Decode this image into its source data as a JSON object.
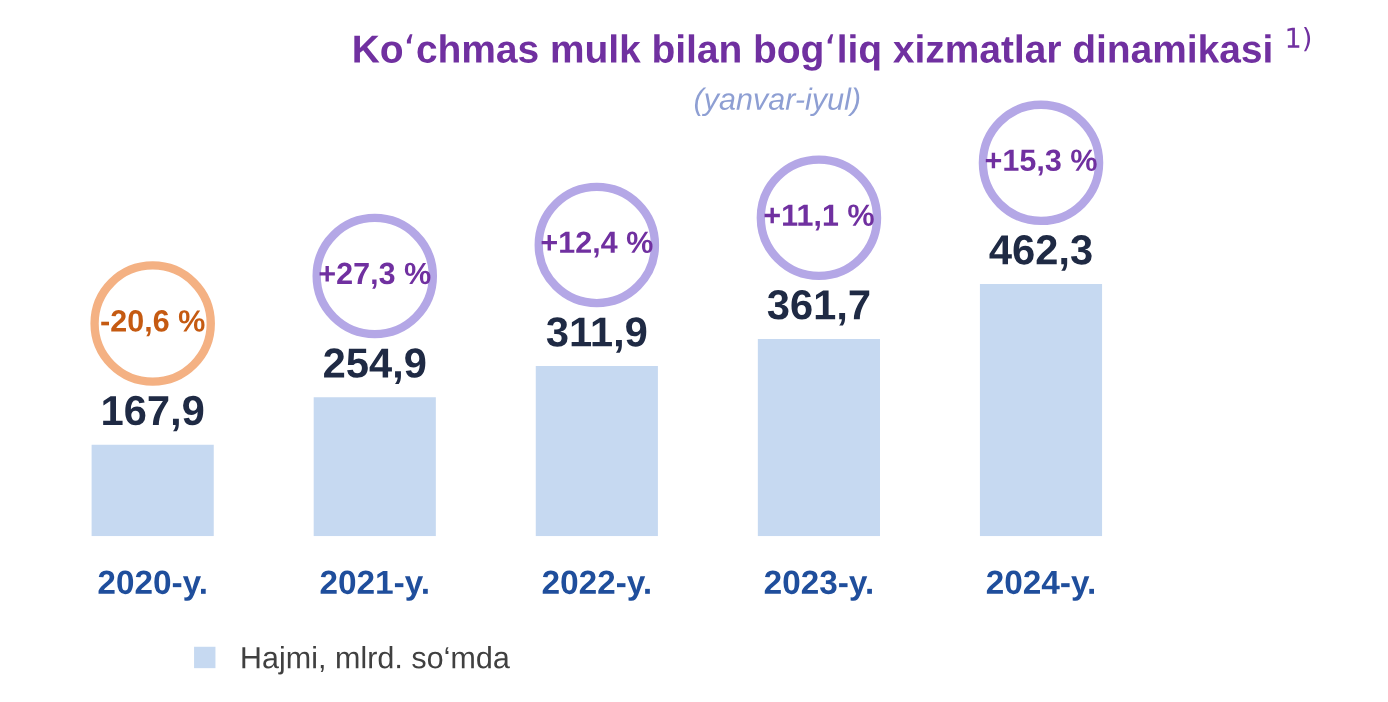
{
  "chart_data": {
    "type": "bar",
    "title": "Ko‘chmas mulk bilan bog‘liq xizmatlar dinamikasi $^{1)}$",
    "subtitle": "(yanvar-iyul)",
    "categories": [
      "2020-y.",
      "2021-y.",
      "2022-y.",
      "2023-y.",
      "2024-y."
    ],
    "series": [
      {
        "name": "Hajmi, mlrd. so‘mda",
        "color": "#c6d9f1",
        "values": [
          167.9,
          254.9,
          311.9,
          361.7,
          462.3
        ],
        "value_labels": [
          "167,9",
          "254,9",
          "311,9",
          "361,7",
          "462,3"
        ]
      }
    ],
    "legend": "bottom left",
    "annotations": [
      "-20,6 %",
      "+27,3 %",
      "+12,4 %",
      "+11,1 %",
      "+15,3 %"
    ]
  }
}
